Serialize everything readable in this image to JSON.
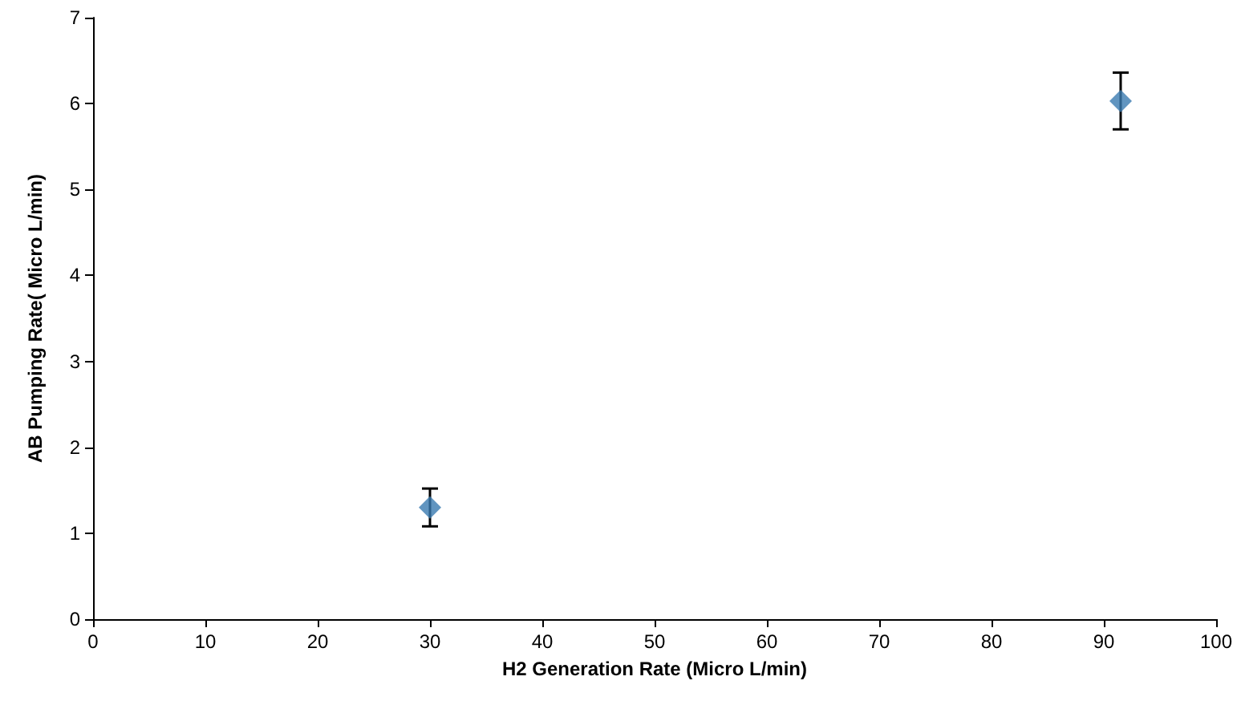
{
  "chart_data": {
    "type": "scatter",
    "xlabel": "H2 Generation Rate (Micro L/min)",
    "ylabel": "AB Pumping Rate( Micro L/min)",
    "x": [
      30,
      91.5
    ],
    "values": [
      1.3,
      6.03
    ],
    "errors": [
      0.22,
      0.33
    ],
    "color": "#3a7bb0",
    "marker": "diamond",
    "xlim": [
      0,
      100
    ],
    "xticks": [
      0,
      10,
      20,
      30,
      40,
      50,
      60,
      70,
      80,
      90,
      100
    ],
    "ylim": [
      0,
      7
    ],
    "yticks": [
      0,
      1,
      2,
      3,
      4,
      5,
      6,
      7
    ],
    "grid": false
  }
}
